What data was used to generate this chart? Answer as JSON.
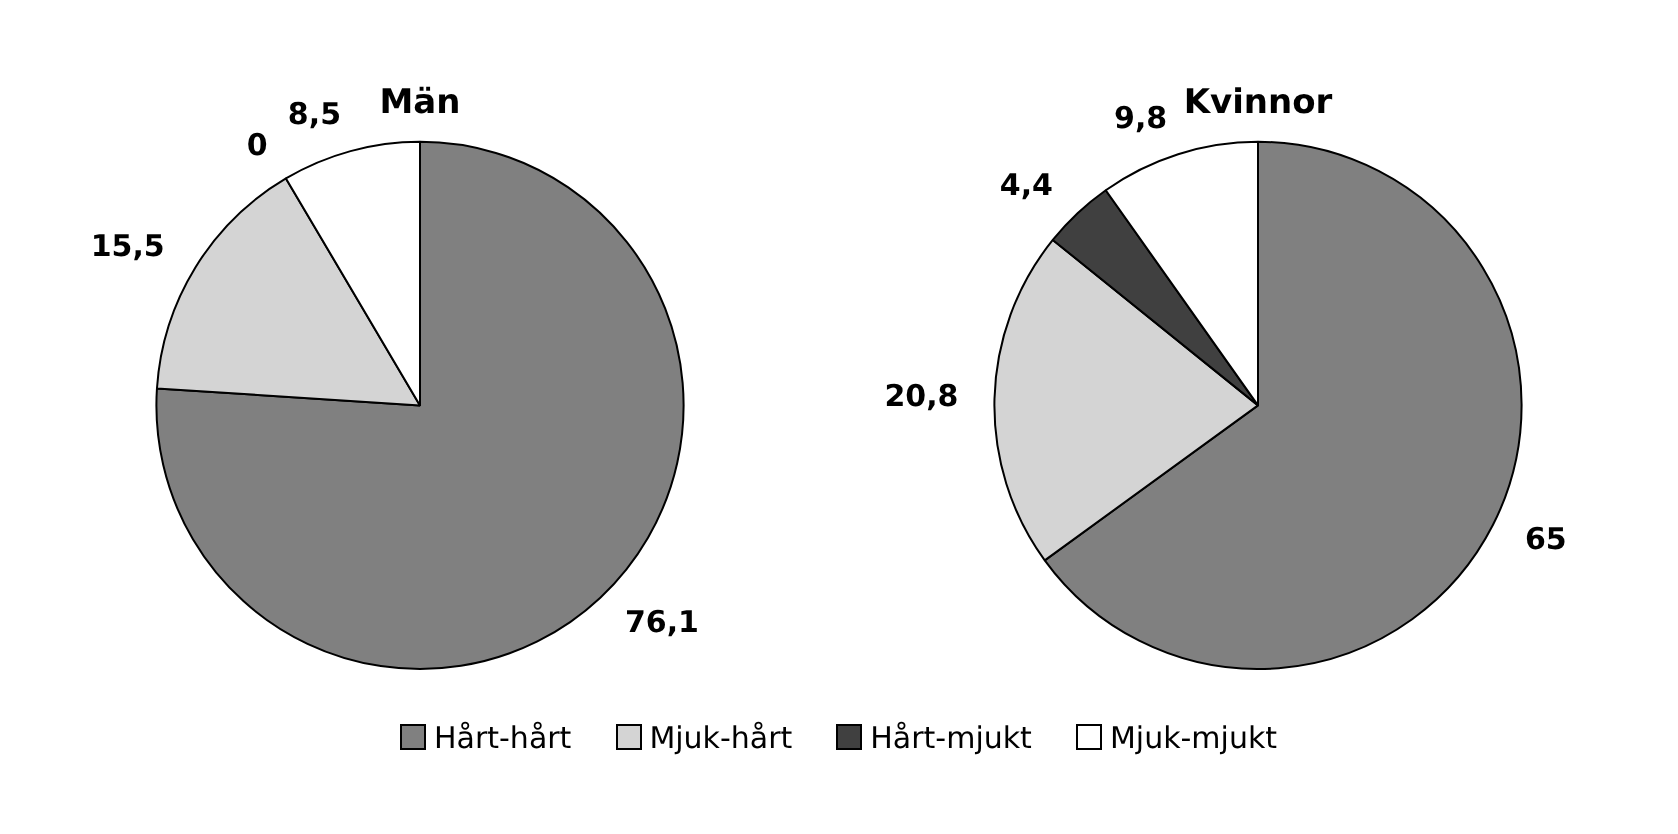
{
  "chart_data": [
    {
      "type": "pie",
      "title": "Män",
      "categories": [
        "Hårt-hårt",
        "Mjuk-hårt",
        "Hårt-mjukt",
        "Mjuk-mjukt"
      ],
      "values": [
        76.1,
        15.5,
        0,
        8.5
      ],
      "value_labels": [
        "76,1",
        "15,5",
        "0",
        "8,5"
      ],
      "colors": [
        "#808080",
        "#d4d4d4",
        "#404040",
        "#ffffff"
      ],
      "legend": "bottom"
    },
    {
      "type": "pie",
      "title": "Kvinnor",
      "values": [
        65,
        20.8,
        4.4,
        9.8
      ],
      "value_labels": [
        "65",
        "20,8",
        "4,4",
        "9,8"
      ],
      "colors": [
        "#808080",
        "#d4d4d4",
        "#404040",
        "#ffffff"
      ]
    }
  ]
}
